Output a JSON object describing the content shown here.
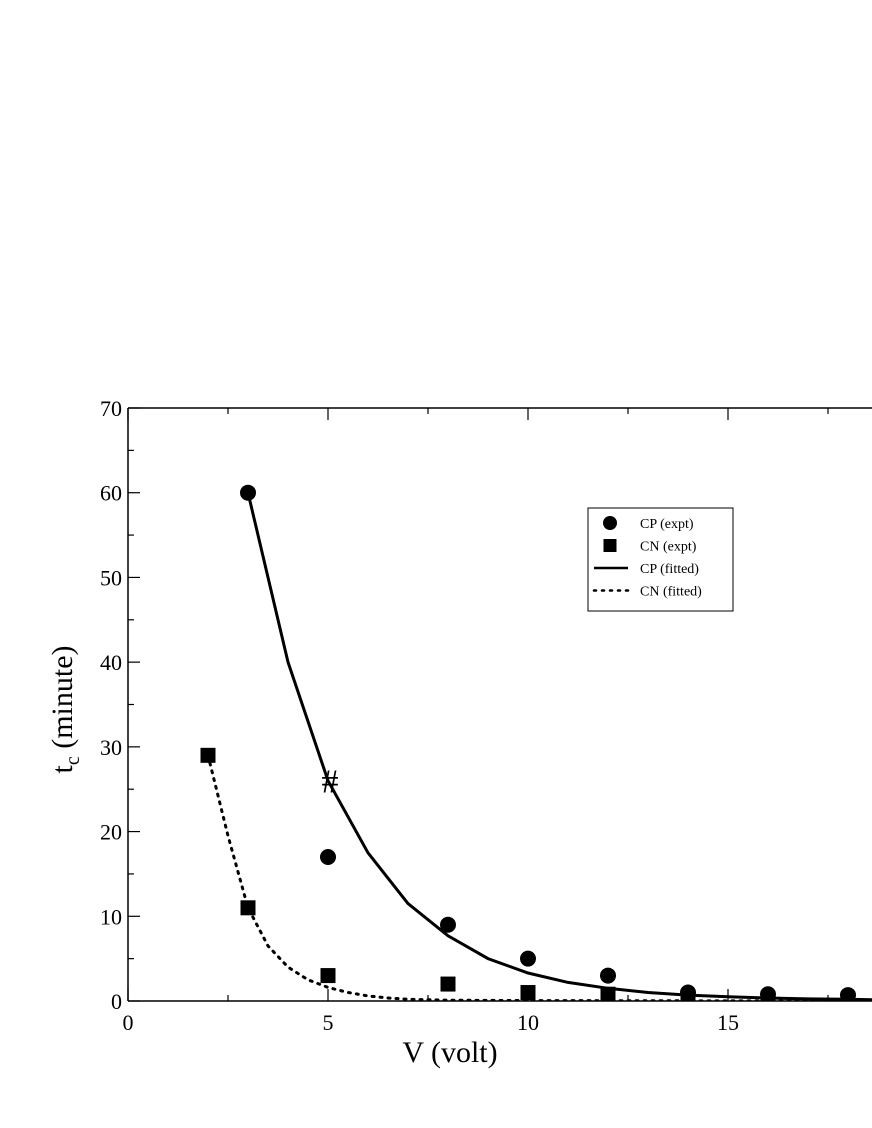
{
  "chart_data": {
    "type": "scatter",
    "title": "",
    "xlabel": "V (volt)",
    "ylabel_main": "t",
    "ylabel_sub": "c",
    "ylabel_rest": " (minute)",
    "xlim": [
      0,
      18.6
    ],
    "ylim": [
      0,
      70
    ],
    "x_ticks": [
      0,
      5,
      10,
      15
    ],
    "x_tick_labels": [
      "0",
      "5",
      "10",
      "15"
    ],
    "x_minor_step": 2.5,
    "y_ticks": [
      0,
      10,
      20,
      30,
      40,
      50,
      60,
      70
    ],
    "y_tick_labels": [
      "0",
      "10",
      "20",
      "30",
      "40",
      "50",
      "60",
      "70"
    ],
    "y_minor_step": 5,
    "grid": false,
    "legend_position": "top-right",
    "series": [
      {
        "name": "CP (expt)",
        "kind": "markers",
        "marker": "circle",
        "x": [
          3,
          5,
          8,
          10,
          12,
          14,
          16,
          18
        ],
        "y": [
          60,
          17,
          9,
          5,
          3,
          1,
          0.8,
          0.7
        ]
      },
      {
        "name": "CN (expt)",
        "kind": "markers",
        "marker": "square",
        "x": [
          2,
          3,
          5,
          8,
          10,
          12,
          14,
          16,
          18
        ],
        "y": [
          29,
          11,
          3,
          2,
          1,
          0.8,
          0.5,
          0.3,
          0.2
        ]
      },
      {
        "name": "CP (fitted)",
        "kind": "line",
        "dash": "solid",
        "x": [
          3,
          4,
          5,
          6,
          7,
          8,
          9,
          10,
          11,
          12,
          13,
          14,
          15,
          16,
          17,
          18,
          18.6
        ],
        "y": [
          60,
          40,
          26,
          17.5,
          11.5,
          7.7,
          5.0,
          3.3,
          2.2,
          1.5,
          1.0,
          0.7,
          0.5,
          0.35,
          0.25,
          0.2,
          0.15
        ]
      },
      {
        "name": "CN (fitted)",
        "kind": "line",
        "dash": "dotted",
        "x": [
          2,
          2.5,
          3,
          3.5,
          4,
          4.5,
          5,
          5.5,
          6,
          6.5,
          7,
          8,
          10,
          12,
          14,
          16,
          18,
          18.6
        ],
        "y": [
          29,
          19.5,
          11,
          6.5,
          4.0,
          2.5,
          1.6,
          1.0,
          0.6,
          0.35,
          0.2,
          0.1,
          0.05,
          0.03,
          0.02,
          0.01,
          0.01,
          0.01
        ]
      }
    ],
    "annotations": [
      {
        "text": "#",
        "x": 5.05,
        "y": 26
      }
    ]
  }
}
